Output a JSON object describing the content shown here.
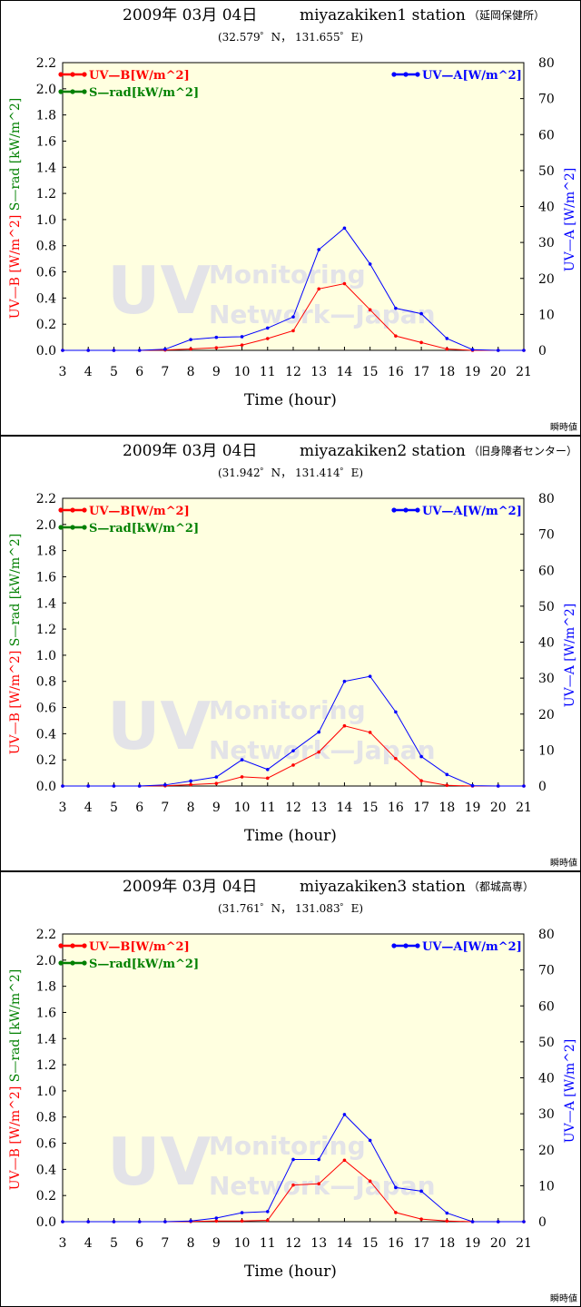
{
  "colors": {
    "uvb": "#ff0000",
    "srad": "#008000",
    "uva": "#0000ff",
    "plot_bg": "#ffffe0",
    "watermark": "#e3e3e8"
  },
  "watermark": {
    "line1": "UV",
    "line2": "Monitoring",
    "line3": "Network—Japan"
  },
  "chart_data": [
    {
      "type": "line",
      "title": "2009年 03月 04日",
      "station": "miyazakiken1 station",
      "site": "（延岡保健所）",
      "coords": "(32.579゜N， 131.655゜E)",
      "xlabel": "Time (hour)",
      "ylabel_left": [
        "S—rad [kW/m^2]",
        "UV—B [W/m^2]"
      ],
      "ylabel_right": "UV—A [W/m^2]",
      "note": "瞬時値",
      "x": [
        3,
        4,
        5,
        6,
        7,
        8,
        9,
        10,
        11,
        12,
        13,
        14,
        15,
        16,
        17,
        18,
        19,
        20,
        21
      ],
      "xticks": [
        "3",
        "4",
        "5",
        "6",
        "7",
        "8",
        "9",
        "10",
        "11",
        "12",
        "13",
        "14",
        "15",
        "16",
        "17",
        "18",
        "19",
        "20",
        "21"
      ],
      "ylim_left": [
        0,
        2.2
      ],
      "yticks_left": [
        "0.0",
        "0.2",
        "0.4",
        "0.6",
        "0.8",
        "1.0",
        "1.2",
        "1.4",
        "1.6",
        "1.8",
        "2.0",
        "2.2"
      ],
      "ylim_right": [
        0,
        80
      ],
      "yticks_right": [
        "0",
        "10",
        "20",
        "30",
        "40",
        "50",
        "60",
        "70",
        "80"
      ],
      "legend_left": [
        "UV—B[W/m^2]",
        "S—rad[kW/m^2]"
      ],
      "legend_right": "UV—A[W/m^2]",
      "series": [
        {
          "name": "UV—B[W/m^2]",
          "axis": "left",
          "values": [
            0,
            0,
            0,
            0,
            0.003,
            0.01,
            0.02,
            0.04,
            0.09,
            0.15,
            0.47,
            0.51,
            0.31,
            0.11,
            0.06,
            0.01,
            0,
            0,
            0
          ]
        },
        {
          "name": "UV—A[W/m^2]",
          "axis": "right",
          "values": [
            0,
            0,
            0,
            0,
            0.3,
            3,
            3.6,
            3.8,
            6.2,
            9.3,
            28,
            34,
            24,
            11.7,
            10.2,
            3.3,
            0.2,
            0,
            0
          ]
        }
      ]
    },
    {
      "type": "line",
      "title": "2009年 03月 04日",
      "station": "miyazakiken2 station",
      "site": "（旧身障者センター）",
      "coords": "(31.942゜N， 131.414゜E)",
      "xlabel": "Time (hour)",
      "ylabel_left": [
        "S—rad [kW/m^2]",
        "UV—B [W/m^2]"
      ],
      "ylabel_right": "UV—A [W/m^2]",
      "note": "瞬時値",
      "x": [
        3,
        4,
        5,
        6,
        7,
        8,
        9,
        10,
        11,
        12,
        13,
        14,
        15,
        16,
        17,
        18,
        19,
        20,
        21
      ],
      "xticks": [
        "3",
        "4",
        "5",
        "6",
        "7",
        "8",
        "9",
        "10",
        "11",
        "12",
        "13",
        "14",
        "15",
        "16",
        "17",
        "18",
        "19",
        "20",
        "21"
      ],
      "ylim_left": [
        0,
        2.2
      ],
      "yticks_left": [
        "0.0",
        "0.2",
        "0.4",
        "0.6",
        "0.8",
        "1.0",
        "1.2",
        "1.4",
        "1.6",
        "1.8",
        "2.0",
        "2.2"
      ],
      "ylim_right": [
        0,
        80
      ],
      "yticks_right": [
        "0",
        "10",
        "20",
        "30",
        "40",
        "50",
        "60",
        "70",
        "80"
      ],
      "legend_left": [
        "UV—B[W/m^2]",
        "S—rad[kW/m^2]"
      ],
      "legend_right": "UV—A[W/m^2]",
      "series": [
        {
          "name": "UV—B[W/m^2]",
          "axis": "left",
          "values": [
            0,
            0,
            0,
            0,
            0.002,
            0.01,
            0.02,
            0.07,
            0.06,
            0.16,
            0.26,
            0.46,
            0.41,
            0.21,
            0.04,
            0.005,
            0,
            0,
            0
          ]
        },
        {
          "name": "UV—A[W/m^2]",
          "axis": "right",
          "values": [
            0,
            0,
            0,
            0,
            0.3,
            1.4,
            2.5,
            7.3,
            4.6,
            9.8,
            15,
            29.1,
            30.5,
            20.6,
            8.2,
            3.2,
            0.1,
            0,
            0
          ]
        }
      ]
    },
    {
      "type": "line",
      "title": "2009年 03月 04日",
      "station": "miyazakiken3 station",
      "site": "（都城高専）",
      "coords": "(31.761゜N， 131.083゜E)",
      "xlabel": "Time (hour)",
      "ylabel_left": [
        "S—rad [kW/m^2]",
        "UV—B [W/m^2]"
      ],
      "ylabel_right": "UV—A [W/m^2]",
      "note": "瞬時値",
      "x": [
        3,
        4,
        5,
        6,
        7,
        8,
        9,
        10,
        11,
        12,
        13,
        14,
        15,
        16,
        17,
        18,
        19,
        20,
        21
      ],
      "xticks": [
        "3",
        "4",
        "5",
        "6",
        "7",
        "8",
        "9",
        "10",
        "11",
        "12",
        "13",
        "14",
        "15",
        "16",
        "17",
        "18",
        "19",
        "20",
        "21"
      ],
      "ylim_left": [
        0,
        2.2
      ],
      "yticks_left": [
        "0.0",
        "0.2",
        "0.4",
        "0.6",
        "0.8",
        "1.0",
        "1.2",
        "1.4",
        "1.6",
        "1.8",
        "2.0",
        "2.2"
      ],
      "ylim_right": [
        0,
        80
      ],
      "yticks_right": [
        "0",
        "10",
        "20",
        "30",
        "40",
        "50",
        "60",
        "70",
        "80"
      ],
      "legend_left": [
        "UV—B[W/m^2]",
        "S—rad[kW/m^2]"
      ],
      "legend_right": "UV—A[W/m^2]",
      "series": [
        {
          "name": "UV—B[W/m^2]",
          "axis": "left",
          "values": [
            0,
            0,
            0,
            0,
            0,
            0.002,
            0.005,
            0.005,
            0.01,
            0.28,
            0.29,
            0.47,
            0.31,
            0.07,
            0.02,
            0.005,
            0,
            0,
            0
          ]
        },
        {
          "name": "UV—A[W/m^2]",
          "axis": "right",
          "values": [
            0,
            0,
            0,
            0,
            0,
            0.2,
            1,
            2.5,
            2.8,
            17.3,
            17.3,
            29.8,
            22.6,
            9.5,
            8.5,
            2.4,
            0,
            0,
            0
          ]
        }
      ]
    }
  ]
}
